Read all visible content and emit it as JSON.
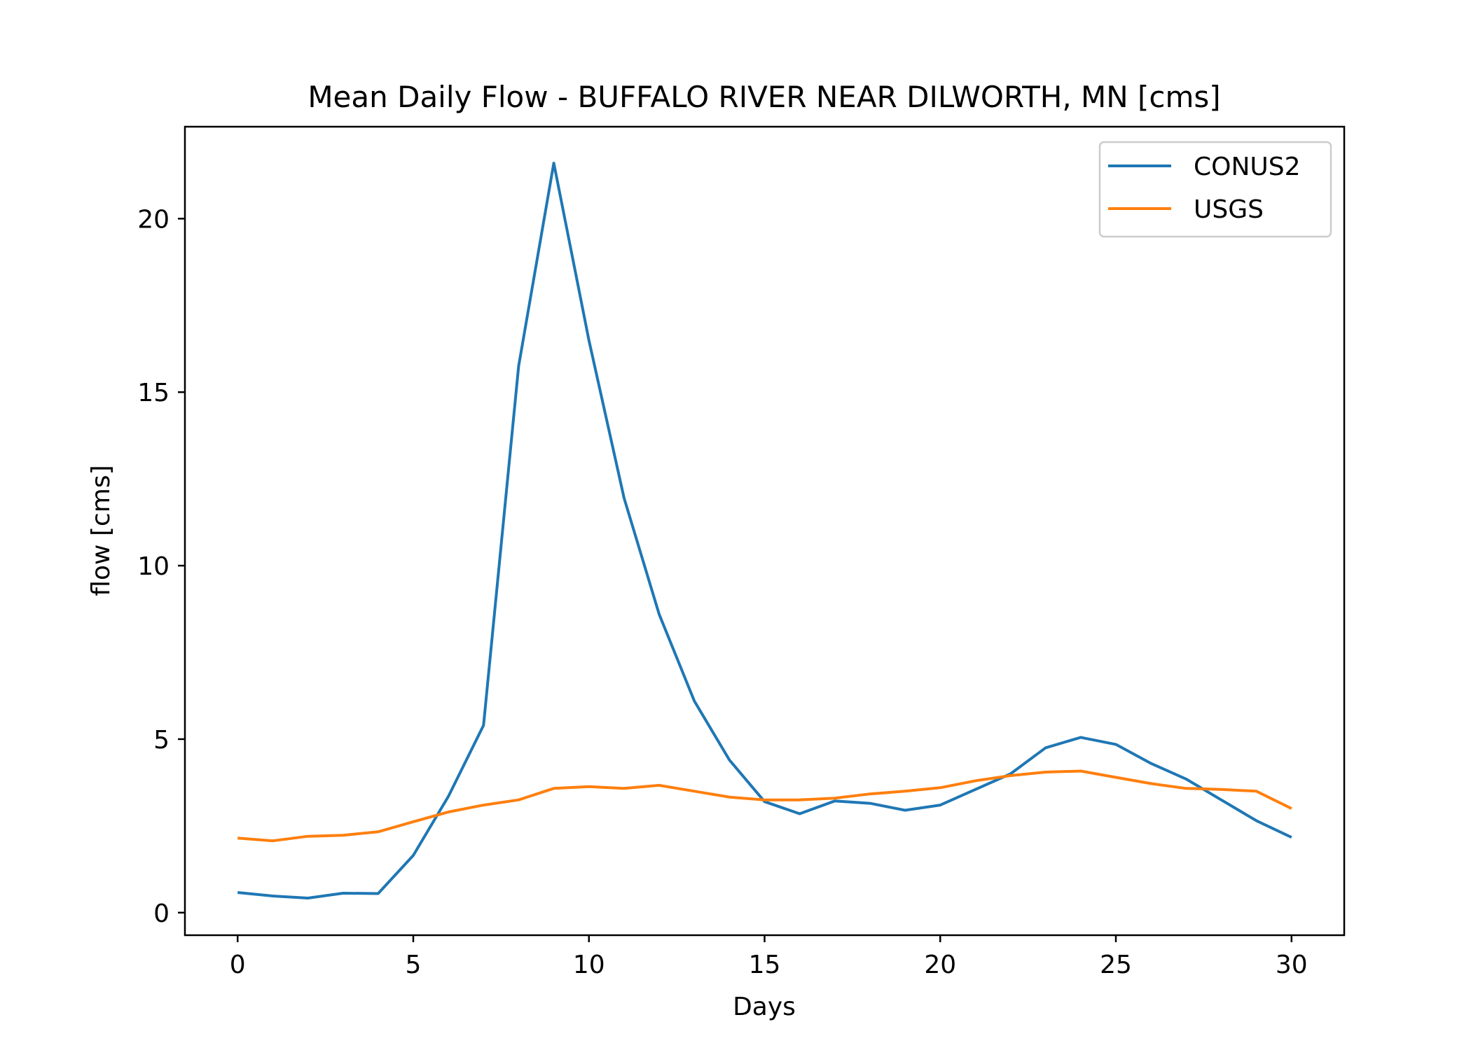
{
  "chart_data": {
    "type": "line",
    "title": "Mean Daily Flow - BUFFALO RIVER NEAR DILWORTH, MN [cms]",
    "xlabel": "Days",
    "ylabel": "flow [cms]",
    "xlim": [
      -1.5,
      31.5
    ],
    "ylim": [
      -0.65,
      22.65
    ],
    "xticks": [
      0,
      5,
      10,
      15,
      20,
      25,
      30
    ],
    "yticks": [
      0,
      5,
      10,
      15,
      20
    ],
    "grid": false,
    "legend_position": "top-right",
    "x": [
      0,
      1,
      2,
      3,
      4,
      5,
      6,
      7,
      8,
      9,
      10,
      11,
      12,
      13,
      14,
      15,
      16,
      17,
      18,
      19,
      20,
      21,
      22,
      23,
      24,
      25,
      26,
      27,
      28,
      29,
      30
    ],
    "series": [
      {
        "name": "CONUS2",
        "color": "#1f77b4",
        "values": [
          0.58,
          0.48,
          0.42,
          0.56,
          0.55,
          1.65,
          3.35,
          5.4,
          15.75,
          21.6,
          16.5,
          11.95,
          8.6,
          6.1,
          4.4,
          3.2,
          2.85,
          3.22,
          3.15,
          2.95,
          3.1,
          3.55,
          4.0,
          4.75,
          5.05,
          4.85,
          4.3,
          3.85,
          3.25,
          2.65,
          2.17
        ]
      },
      {
        "name": "USGS",
        "color": "#ff7f0e",
        "values": [
          2.15,
          2.07,
          2.2,
          2.23,
          2.33,
          2.62,
          2.9,
          3.1,
          3.25,
          3.58,
          3.63,
          3.58,
          3.67,
          3.5,
          3.33,
          3.25,
          3.25,
          3.3,
          3.42,
          3.5,
          3.6,
          3.8,
          3.95,
          4.05,
          4.08,
          3.9,
          3.72,
          3.58,
          3.55,
          3.5,
          3.0
        ]
      }
    ]
  }
}
